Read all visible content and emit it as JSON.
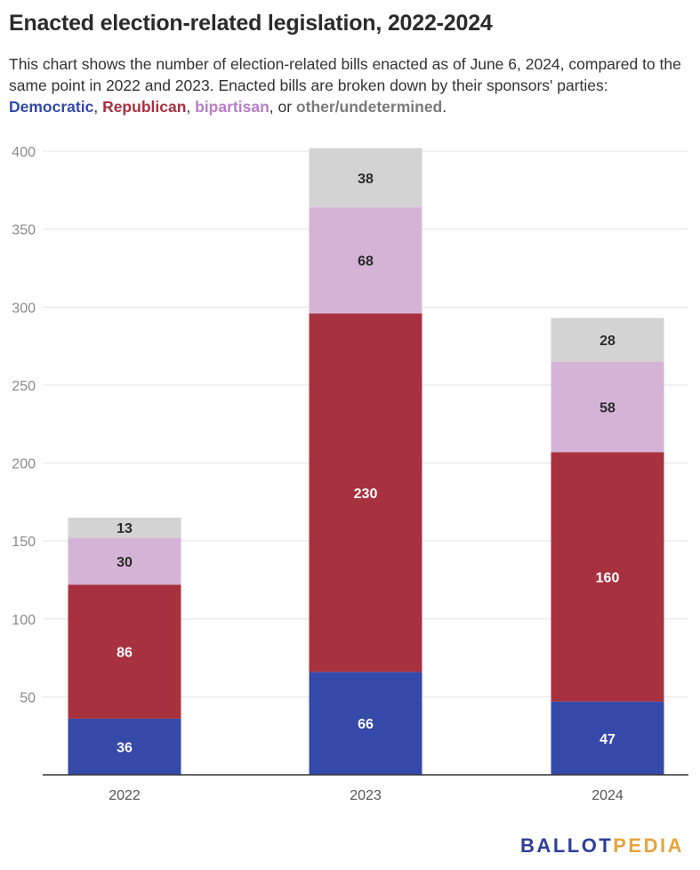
{
  "header": {
    "title": "Enacted election-related legislation, 2022-2024",
    "subtitle_pre": "This chart shows the number of election-related bills enacted as of June 6, 2024, compared to the same point in 2022 and 2023. Enacted bills are broken down by their sponsors' parties: ",
    "legend_dem": "Democratic",
    "sep1": ", ",
    "legend_rep": "Republican",
    "sep2": ", ",
    "legend_bip": "bipartisan",
    "sep3": ", or ",
    "legend_oth": "other/undetermined",
    "end": "."
  },
  "brand": {
    "part1": "BALLOT",
    "part2": "PEDIA"
  },
  "chart_data": {
    "type": "bar",
    "stacked": true,
    "categories": [
      "2022",
      "2023",
      "2024"
    ],
    "series": [
      {
        "name": "Democratic",
        "color": "#3549a8",
        "label_color": "#ffffff",
        "values": [
          36,
          66,
          47
        ]
      },
      {
        "name": "Republican",
        "color": "#a8313f",
        "label_color": "#ffffff",
        "values": [
          86,
          230,
          160
        ]
      },
      {
        "name": "bipartisan",
        "color": "#d5b3d7",
        "label_color": "#2b2b2b",
        "values": [
          30,
          68,
          58
        ]
      },
      {
        "name": "other/undetermined",
        "color": "#d3d3d3",
        "label_color": "#2b2b2b",
        "values": [
          13,
          38,
          28
        ]
      }
    ],
    "yticks": [
      50,
      100,
      150,
      200,
      250,
      300,
      350,
      400
    ],
    "ylim": [
      0,
      400
    ],
    "grid": true,
    "legend": "subtitle"
  }
}
